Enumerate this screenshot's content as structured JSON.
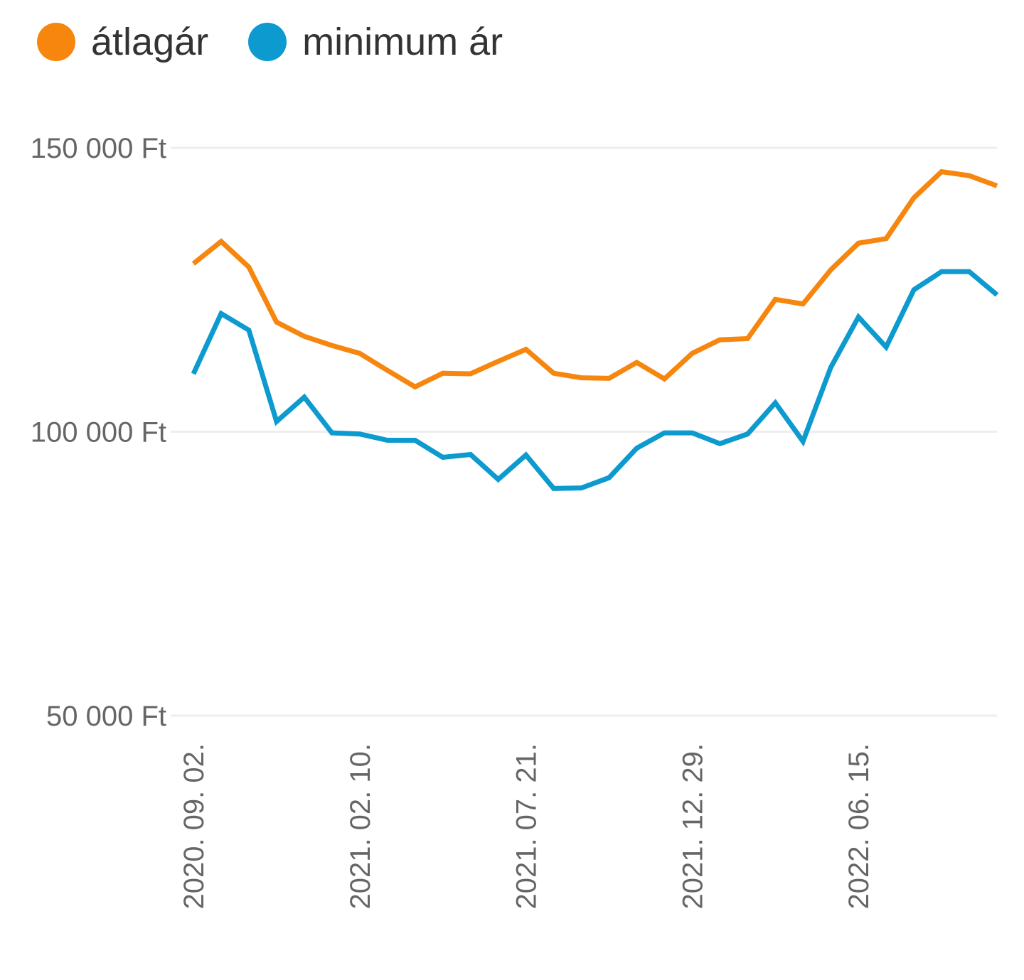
{
  "colors": {
    "atlagar": "#F6860E",
    "minimum": "#0C9ACF",
    "grid": "#EEEEEE",
    "tick": "#666666"
  },
  "chart_data": {
    "type": "line",
    "title": "",
    "xlabel": "",
    "ylabel": "",
    "ylim": [
      50000,
      150000
    ],
    "yticks": [
      50000,
      100000,
      150000
    ],
    "ytick_labels": [
      "50 000 Ft",
      "100 000 Ft",
      "150 000 Ft"
    ],
    "xtick_labels": [
      "2020. 09. 02.",
      "2021. 02. 10.",
      "2021. 07. 21.",
      "2021. 12. 29.",
      "2022. 06. 15."
    ],
    "xtick_index": [
      0,
      6,
      12,
      18,
      24
    ],
    "legend_position": "top-left",
    "grid": true,
    "x": [
      "2020. 09. 02.",
      "2020. 09. 30.",
      "2020. 10. 28.",
      "2020. 11. 25.",
      "2020. 12. 23.",
      "2021. 01. 20.",
      "2021. 02. 10.",
      "2021. 03. 10.",
      "2021. 04. 07.",
      "2021. 05. 05.",
      "2021. 06. 02.",
      "2021. 06. 30.",
      "2021. 07. 21.",
      "2021. 08. 18.",
      "2021. 09. 15.",
      "2021. 10. 13.",
      "2021. 11. 10.",
      "2021. 12. 08.",
      "2021. 12. 29.",
      "2022. 01. 26.",
      "2022. 02. 23.",
      "2022. 03. 23.",
      "2022. 04. 20.",
      "2022. 05. 18.",
      "2022. 06. 15.",
      "2022. 07. 13.",
      "2022. 08. 10.",
      "2022. 09. 07.",
      "2022. 10. 05.",
      "2022. 11. 02."
    ],
    "series": [
      {
        "name": "átlagár",
        "color": "#F6860E",
        "values": [
          129600,
          133500,
          129000,
          119300,
          116800,
          115200,
          113800,
          110800,
          107900,
          110300,
          110200,
          112400,
          114500,
          110300,
          109500,
          109400,
          112200,
          109300,
          113800,
          116200,
          116400,
          123300,
          122500,
          128500,
          133200,
          134000,
          141200,
          145800,
          145100,
          143300
        ]
      },
      {
        "name": "minimum ár",
        "color": "#0C9ACF",
        "values": [
          110200,
          120800,
          117900,
          101800,
          106100,
          99800,
          99600,
          98500,
          98500,
          95500,
          96000,
          91600,
          95900,
          90000,
          90100,
          91900,
          97100,
          99800,
          99800,
          97900,
          99600,
          105100,
          98300,
          111300,
          120200,
          114900,
          125000,
          128200,
          128200,
          124100
        ]
      }
    ]
  }
}
